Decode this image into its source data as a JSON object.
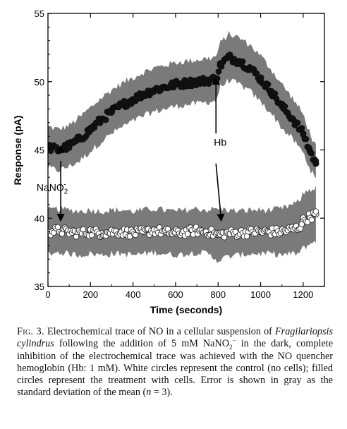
{
  "chart_data": {
    "type": "scatter",
    "xlabel": "Time (seconds)",
    "ylabel": "Response (pA)",
    "xlim": [
      0,
      1300
    ],
    "ylim": [
      35,
      55
    ],
    "xticks": [
      0,
      200,
      400,
      600,
      800,
      1000,
      1200
    ],
    "yticks": [
      35,
      40,
      45,
      50,
      55
    ],
    "grid": false,
    "legend": "none",
    "series": [
      {
        "style": "filled circles with gray error band",
        "color": "#111111",
        "error_color": "#7a7a7a",
        "x": [
          0,
          50,
          100,
          150,
          200,
          250,
          300,
          350,
          400,
          450,
          500,
          550,
          600,
          650,
          700,
          750,
          790,
          810,
          850,
          900,
          950,
          1000,
          1050,
          1100,
          1150,
          1200,
          1230,
          1260
        ],
        "y": [
          45.2,
          45.0,
          45.3,
          45.8,
          46.5,
          47.2,
          47.8,
          48.3,
          48.7,
          49.1,
          49.4,
          49.6,
          49.8,
          49.9,
          50.0,
          50.1,
          50.2,
          51.2,
          51.8,
          51.5,
          51.0,
          50.2,
          49.3,
          48.2,
          47.3,
          46.2,
          45.0,
          44.0
        ],
        "error": [
          1.5,
          1.5,
          1.5,
          1.6,
          1.6,
          1.6,
          1.6,
          1.6,
          1.6,
          1.6,
          1.6,
          1.6,
          1.6,
          1.6,
          1.6,
          1.6,
          1.6,
          1.6,
          1.7,
          1.7,
          1.7,
          1.7,
          1.6,
          1.6,
          1.5,
          1.4,
          1.3,
          1.2
        ]
      },
      {
        "style": "white circles with gray error band",
        "color": "#ffffff",
        "error_color": "#7a7a7a",
        "x": [
          0,
          50,
          100,
          150,
          200,
          250,
          300,
          350,
          400,
          450,
          500,
          550,
          600,
          650,
          700,
          750,
          800,
          850,
          900,
          950,
          1000,
          1050,
          1100,
          1150,
          1180,
          1200,
          1230,
          1260
        ],
        "y": [
          39.0,
          39.1,
          39.0,
          38.9,
          39.0,
          38.9,
          39.0,
          39.0,
          38.9,
          39.0,
          39.1,
          39.0,
          38.9,
          39.0,
          39.1,
          39.0,
          38.8,
          38.9,
          38.9,
          39.0,
          39.0,
          39.0,
          39.0,
          39.2,
          39.3,
          39.8,
          40.1,
          40.3
        ],
        "error": [
          1.6,
          1.6,
          1.6,
          1.6,
          1.6,
          1.6,
          1.6,
          1.6,
          1.6,
          1.6,
          1.6,
          1.6,
          1.6,
          1.6,
          1.6,
          1.6,
          1.9,
          1.7,
          1.6,
          1.6,
          1.6,
          1.6,
          1.7,
          1.8,
          1.9,
          2.0,
          2.0,
          1.9
        ]
      }
    ],
    "annotations": [
      {
        "text_main": "NaNO",
        "sub": "2",
        "sup": "-",
        "x": 60,
        "arrow_from_y": 44.2,
        "arrow_to_y": 39.8
      },
      {
        "text": "Hb",
        "x": 790,
        "arrow_from_y": 46.2,
        "arrow_to_y": 50.3
      }
    ]
  },
  "caption": {
    "label": "Fig. 3.",
    "t1": " Electrochemical trace of NO in a cellular suspension of ",
    "species": "Fragilariopsis cylindrus",
    "t2": " following the addition of 5 mM NaNO",
    "sub": "2",
    "sup": "−",
    "t3": " in the dark, complete inhibition of the electrochemical trace was achieved with the NO quencher hemoglobin (Hb: 1 mM). White circles represent the control (no cells); filled circles represent the treatment with cells. Error is shown in gray as the standard deviation of the mean (",
    "n": "n",
    "t4": " = 3)."
  }
}
